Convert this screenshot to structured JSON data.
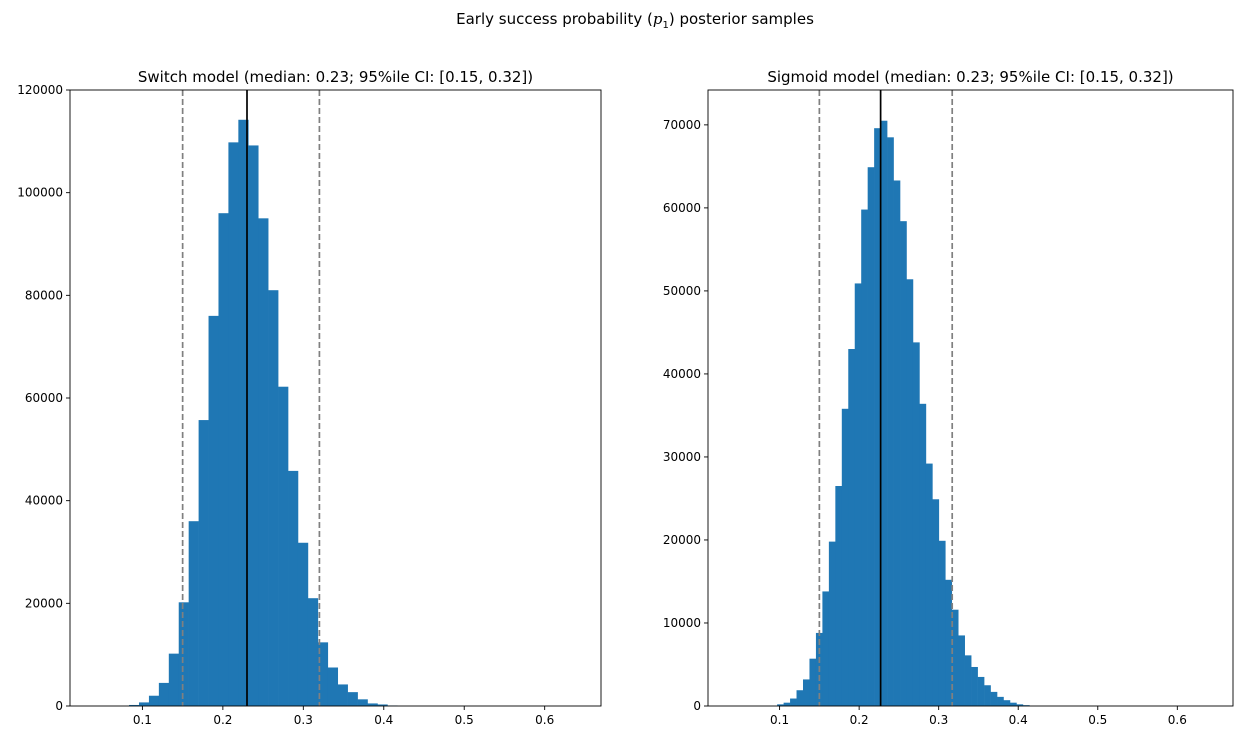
{
  "figure": {
    "suptitle_pre": "Early success probability (",
    "suptitle_var": "p",
    "suptitle_sub": "1",
    "suptitle_post": ") posterior samples"
  },
  "chart_data": [
    {
      "type": "bar",
      "title": "Switch model (median: 0.23; 95%ile CI: [0.15, 0.32])",
      "xlabel": "",
      "ylabel": "",
      "xlim": [
        0.01,
        0.67
      ],
      "ylim": [
        0,
        120000
      ],
      "xticks": [
        0.1,
        0.2,
        0.3,
        0.4,
        0.5,
        0.6
      ],
      "xtick_labels": [
        "0.1",
        "0.2",
        "0.3",
        "0.4",
        "0.5",
        "0.6"
      ],
      "yticks": [
        0,
        20000,
        40000,
        60000,
        80000,
        100000,
        120000
      ],
      "ytick_labels": [
        "0",
        "20000",
        "40000",
        "60000",
        "80000",
        "100000",
        "120000"
      ],
      "bin_start": 0.034,
      "bin_width": 0.01235,
      "values": [
        0,
        0,
        0,
        0,
        200,
        700,
        2000,
        4500,
        10200,
        20200,
        36000,
        55700,
        76000,
        96000,
        109800,
        114200,
        109200,
        95000,
        81000,
        62200,
        45800,
        31800,
        21000,
        12400,
        7500,
        4200,
        2700,
        1300,
        500,
        300,
        100,
        0,
        0,
        0,
        0,
        0,
        0,
        0,
        0,
        0,
        0,
        0,
        0,
        0,
        0,
        0,
        0,
        0,
        0,
        0,
        0
      ],
      "median": 0.23,
      "ci": [
        0.15,
        0.32
      ],
      "bar_color": "#1f77b4",
      "median_line_color": "#000000",
      "ci_line_color": "#808080",
      "grid": false,
      "legend": "none"
    },
    {
      "type": "bar",
      "title": "Sigmoid model (median: 0.23; 95%ile CI: [0.15, 0.32])",
      "xlabel": "",
      "ylabel": "",
      "xlim": [
        0.01,
        0.67
      ],
      "ylim": [
        0,
        74200
      ],
      "xticks": [
        0.1,
        0.2,
        0.3,
        0.4,
        0.5,
        0.6
      ],
      "xtick_labels": [
        "0.1",
        "0.2",
        "0.3",
        "0.4",
        "0.5",
        "0.6"
      ],
      "yticks": [
        0,
        10000,
        20000,
        30000,
        40000,
        50000,
        60000,
        70000
      ],
      "ytick_labels": [
        "0",
        "10000",
        "20000",
        "30000",
        "40000",
        "50000",
        "60000",
        "70000"
      ],
      "bin_start": 0.04,
      "bin_width": 0.00813,
      "values": [
        0,
        0,
        0,
        0,
        0,
        0,
        0,
        200,
        400,
        900,
        1900,
        3200,
        5700,
        8800,
        13800,
        19800,
        26500,
        35800,
        43000,
        50900,
        59800,
        64900,
        69600,
        70500,
        68500,
        63300,
        58400,
        51400,
        43800,
        36400,
        29200,
        24900,
        19900,
        15200,
        11600,
        8500,
        6100,
        4700,
        3500,
        2500,
        1700,
        1100,
        700,
        400,
        200,
        100,
        0,
        0,
        0,
        0,
        0,
        0,
        0,
        0,
        0,
        0,
        0,
        0,
        0,
        0,
        0,
        0,
        0,
        0,
        0,
        0,
        0,
        0,
        0,
        0,
        0,
        0,
        0,
        0,
        0,
        0
      ],
      "median": 0.227,
      "ci": [
        0.15,
        0.317
      ],
      "bar_color": "#1f77b4",
      "median_line_color": "#000000",
      "ci_line_color": "#808080",
      "grid": false,
      "legend": "none"
    }
  ]
}
